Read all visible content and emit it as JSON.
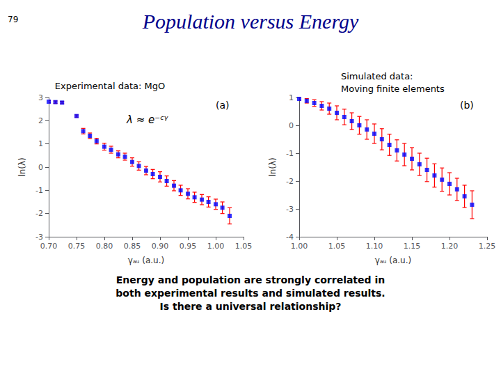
{
  "title": "Population versus Energy",
  "annotations": [
    "79",
    "Experimental data: MgO",
    "Simulated data:\nMoving finite elements",
    "Energy and population are strongly correlated in\nboth experimental results and simulated results.\nIs there a universal relationship?"
  ],
  "chart_data": [
    {
      "type": "scatter",
      "x_label": "γₐᵤ (a.u.)",
      "y_label": "ln(λ)",
      "grid": false,
      "annotations": [
        "λ ≈ e⁻ᶜᵞ",
        "(a)"
      ],
      "xlim": [
        0.7,
        1.05
      ],
      "ylim": [
        -3,
        3
      ],
      "xticks": [
        {
          "value": 0.7,
          "label": "0.70"
        },
        {
          "value": 0.75,
          "label": "0.75"
        },
        {
          "value": 0.8,
          "label": "0.80"
        },
        {
          "value": 0.85,
          "label": "0.85"
        },
        {
          "value": 0.9,
          "label": "0.90"
        },
        {
          "value": 0.95,
          "label": "0.95"
        },
        {
          "value": 1.0,
          "label": "1.00"
        },
        {
          "value": 1.05,
          "label": "1.05"
        }
      ],
      "yticks": [
        -3,
        -2,
        -1,
        0,
        1,
        2,
        3
      ],
      "series": [
        {
          "color": "#0000FF",
          "marker": "square",
          "x": [
            0.7,
            0.712,
            0.724,
            0.75,
            0.762,
            0.774,
            0.786,
            0.8,
            0.812,
            0.825,
            0.837,
            0.85,
            0.862,
            0.875,
            0.887,
            0.9,
            0.912,
            0.925,
            0.937,
            0.95,
            0.962,
            0.975,
            0.987,
            1.0,
            1.012,
            1.025
          ],
          "values": [
            2.82,
            2.8,
            2.78,
            2.2,
            1.55,
            1.35,
            1.12,
            0.88,
            0.75,
            0.55,
            0.45,
            0.22,
            0.05,
            -0.15,
            -0.3,
            -0.42,
            -0.6,
            -0.8,
            -1.0,
            -1.15,
            -1.3,
            -1.4,
            -1.5,
            -1.6,
            -1.75,
            -2.1
          ],
          "yerr": [
            0.05,
            0.05,
            0.05,
            0.05,
            0.12,
            0.12,
            0.12,
            0.15,
            0.15,
            0.15,
            0.15,
            0.18,
            0.18,
            0.18,
            0.2,
            0.22,
            0.22,
            0.22,
            0.22,
            0.22,
            0.22,
            0.22,
            0.22,
            0.22,
            0.25,
            0.35
          ]
        }
      ]
    },
    {
      "type": "scatter",
      "x_label": "γₐᵤ (a.u.)",
      "y_label": "ln(λ)",
      "grid": false,
      "annotations": [
        "(b)"
      ],
      "xlim": [
        1.0,
        1.25
      ],
      "ylim": [
        -4,
        1
      ],
      "xticks": [
        {
          "value": 1.0,
          "label": "1.00"
        },
        {
          "value": 1.05,
          "label": "1.05"
        },
        {
          "value": 1.1,
          "label": "1.10"
        },
        {
          "value": 1.15,
          "label": "1.15"
        },
        {
          "value": 1.2,
          "label": "1.20"
        },
        {
          "value": 1.25,
          "label": "1.25"
        }
      ],
      "yticks": [
        -4,
        -3,
        -2,
        -1,
        0,
        1
      ],
      "series": [
        {
          "color": "#0000FF",
          "marker": "square",
          "x": [
            1.0,
            1.01,
            1.02,
            1.03,
            1.04,
            1.05,
            1.06,
            1.07,
            1.08,
            1.09,
            1.1,
            1.11,
            1.12,
            1.13,
            1.14,
            1.15,
            1.16,
            1.17,
            1.18,
            1.19,
            1.2,
            1.21,
            1.22,
            1.23
          ],
          "values": [
            0.95,
            0.88,
            0.8,
            0.7,
            0.6,
            0.45,
            0.3,
            0.15,
            0.0,
            -0.15,
            -0.3,
            -0.5,
            -0.7,
            -0.9,
            -1.05,
            -1.2,
            -1.4,
            -1.6,
            -1.8,
            -1.95,
            -2.1,
            -2.3,
            -2.55,
            -2.85
          ],
          "yerr": [
            0.05,
            0.08,
            0.12,
            0.15,
            0.2,
            0.25,
            0.28,
            0.3,
            0.32,
            0.35,
            0.35,
            0.38,
            0.38,
            0.38,
            0.4,
            0.4,
            0.4,
            0.42,
            0.42,
            0.42,
            0.4,
            0.4,
            0.4,
            0.5
          ]
        }
      ]
    }
  ]
}
